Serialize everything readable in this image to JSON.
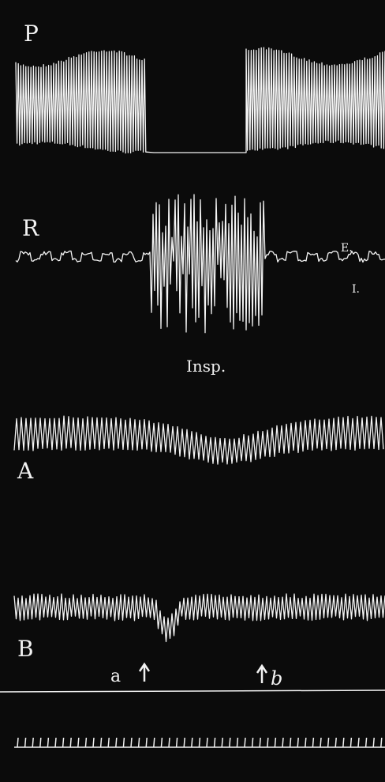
{
  "labels": {
    "p": "P",
    "r": "R",
    "e": "E.",
    "i": "I.",
    "insp": "Insp.",
    "a_trace": "A",
    "b_trace": "B",
    "mark_a": "a",
    "mark_b": "b"
  }
}
